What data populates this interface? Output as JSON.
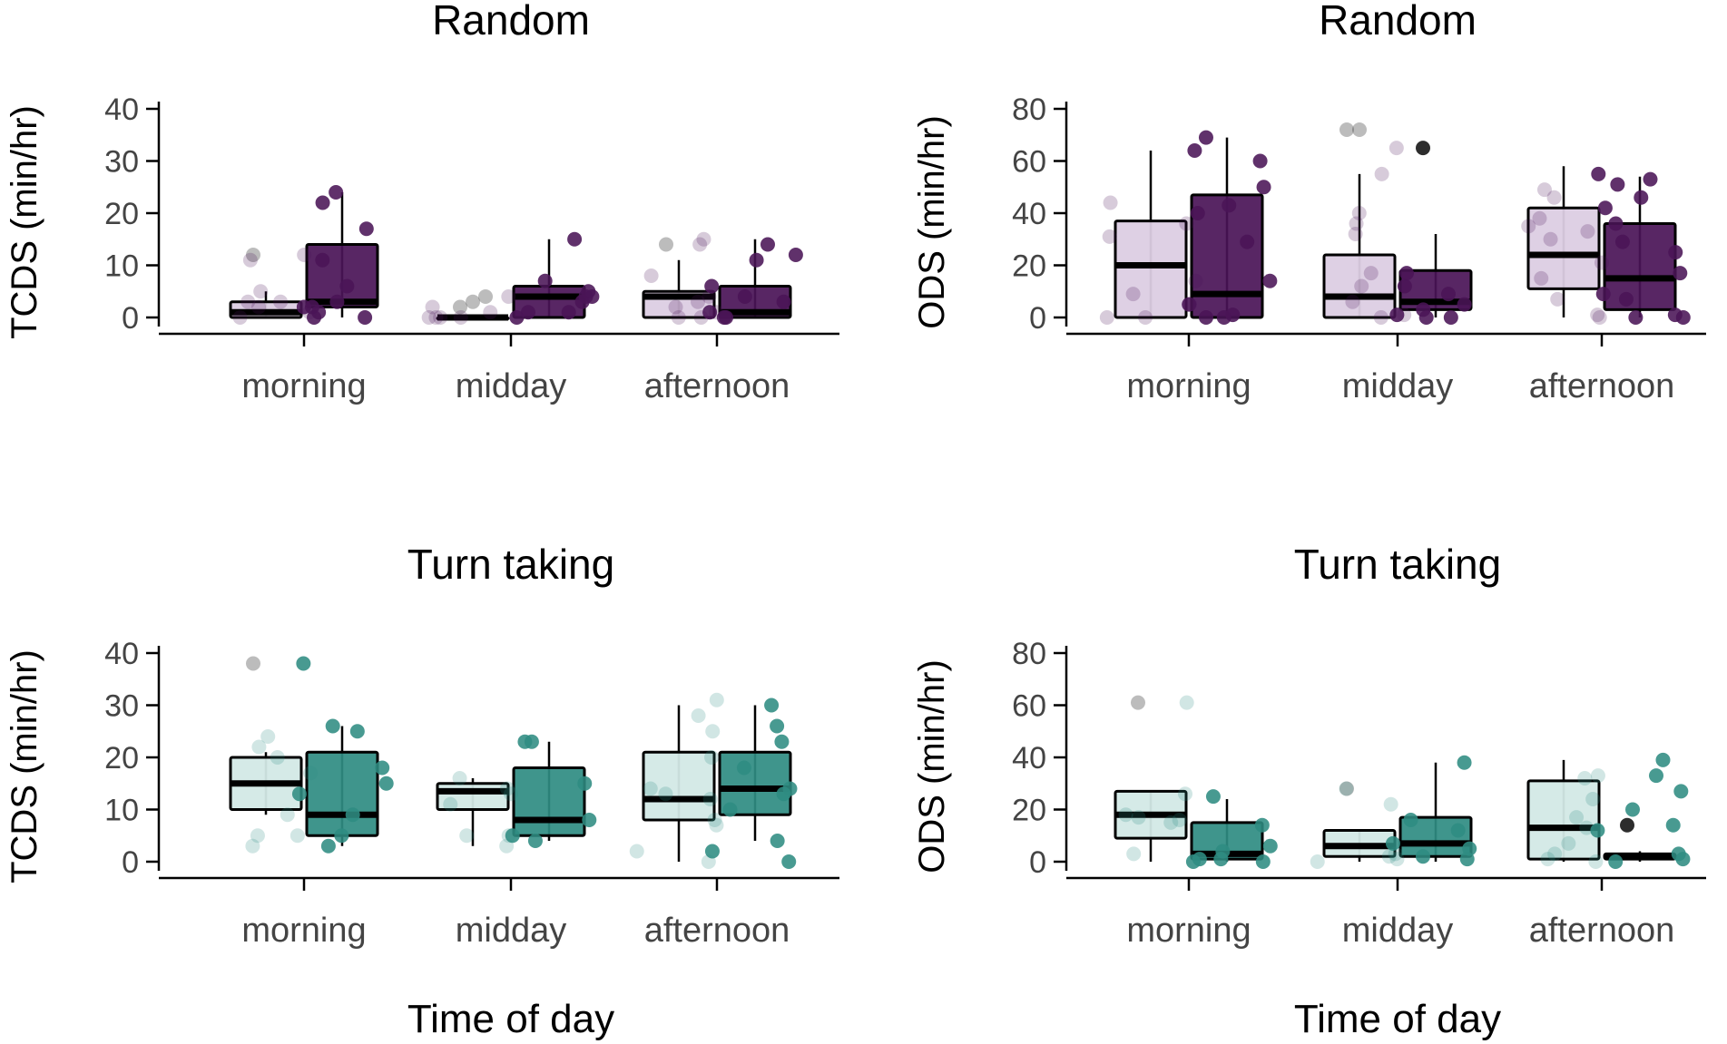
{
  "colors": {
    "purple_dark": "#4a1457",
    "purple_light": "#dccde3",
    "teal_dark": "#2f8c82",
    "teal_light": "#d3e9e6",
    "outlier": "#222222",
    "axis": "#000000"
  },
  "xaxis_label": "Time of day",
  "chart_data": [
    {
      "type": "box",
      "title": "Random",
      "ylabel": "TCDS (min/hr)",
      "xlabel": "",
      "palette": "purple",
      "categories": [
        "morning",
        "midday",
        "afternoon"
      ],
      "ylim": [
        0,
        40
      ],
      "yticks": [
        0,
        10,
        20,
        30,
        40
      ],
      "boxes": [
        {
          "category": "morning",
          "group": "light",
          "q1": 0,
          "median": 1,
          "q3": 3,
          "whisker_low": 0,
          "whisker_high": 5,
          "outliers": [
            12
          ]
        },
        {
          "category": "morning",
          "group": "dark",
          "q1": 2,
          "median": 3,
          "q3": 14,
          "whisker_low": 0,
          "whisker_high": 24,
          "outliers": []
        },
        {
          "category": "midday",
          "group": "light",
          "q1": 0,
          "median": 0,
          "q3": 0,
          "whisker_low": 0,
          "whisker_high": 0,
          "outliers": [
            2,
            3,
            4
          ]
        },
        {
          "category": "midday",
          "group": "dark",
          "q1": 0,
          "median": 4,
          "q3": 6,
          "whisker_low": 0,
          "whisker_high": 15,
          "outliers": []
        },
        {
          "category": "afternoon",
          "group": "light",
          "q1": 0,
          "median": 4,
          "q3": 5,
          "whisker_low": 0,
          "whisker_high": 11,
          "outliers": [
            14
          ]
        },
        {
          "category": "afternoon",
          "group": "dark",
          "q1": 0,
          "median": 1,
          "q3": 6,
          "whisker_low": 0,
          "whisker_high": 15,
          "outliers": []
        }
      ],
      "points": [
        {
          "category": "morning",
          "group": "light",
          "values": [
            12,
            11,
            5,
            3,
            2,
            1,
            0,
            3
          ]
        },
        {
          "category": "morning",
          "group": "dark",
          "values": [
            22,
            17,
            11,
            6,
            2,
            1,
            0,
            24,
            3,
            0,
            2
          ]
        },
        {
          "category": "midday",
          "group": "light",
          "values": [
            0,
            0,
            1,
            0,
            0,
            2,
            4
          ]
        },
        {
          "category": "midday",
          "group": "dark",
          "values": [
            15,
            5,
            1,
            7,
            4,
            1,
            0,
            3,
            4
          ]
        },
        {
          "category": "afternoon",
          "group": "light",
          "values": [
            14,
            15,
            8,
            4,
            3,
            1,
            0,
            0,
            2
          ]
        },
        {
          "category": "afternoon",
          "group": "dark",
          "values": [
            12,
            11,
            6,
            4,
            1,
            0,
            0,
            14,
            3
          ]
        }
      ]
    },
    {
      "type": "box",
      "title": "Random",
      "ylabel": "ODS (min/hr)",
      "xlabel": "",
      "palette": "purple",
      "categories": [
        "morning",
        "midday",
        "afternoon"
      ],
      "ylim": [
        0,
        80
      ],
      "yticks": [
        0,
        20,
        40,
        60,
        80
      ],
      "boxes": [
        {
          "category": "morning",
          "group": "light",
          "q1": 0,
          "median": 20,
          "q3": 37,
          "whisker_low": 0,
          "whisker_high": 64,
          "outliers": []
        },
        {
          "category": "morning",
          "group": "dark",
          "q1": 0,
          "median": 9,
          "q3": 47,
          "whisker_low": 0,
          "whisker_high": 69,
          "outliers": []
        },
        {
          "category": "midday",
          "group": "light",
          "q1": 0,
          "median": 8,
          "q3": 24,
          "whisker_low": 0,
          "whisker_high": 55,
          "outliers": [
            72,
            72
          ]
        },
        {
          "category": "midday",
          "group": "dark",
          "q1": 3,
          "median": 6,
          "q3": 18,
          "whisker_low": 0,
          "whisker_high": 32,
          "outliers": [
            65
          ]
        },
        {
          "category": "afternoon",
          "group": "light",
          "q1": 11,
          "median": 24,
          "q3": 42,
          "whisker_low": 0,
          "whisker_high": 58,
          "outliers": []
        },
        {
          "category": "afternoon",
          "group": "dark",
          "q1": 3,
          "median": 15,
          "q3": 36,
          "whisker_low": 0,
          "whisker_high": 54,
          "outliers": []
        }
      ],
      "points": [
        {
          "category": "morning",
          "group": "light",
          "values": [
            44,
            36,
            31,
            14,
            9,
            0,
            0,
            5
          ]
        },
        {
          "category": "morning",
          "group": "dark",
          "values": [
            69,
            64,
            60,
            50,
            43,
            40,
            29,
            14,
            5,
            1,
            0,
            0
          ]
        },
        {
          "category": "midday",
          "group": "light",
          "values": [
            65,
            55,
            40,
            36,
            32,
            17,
            12,
            6,
            1,
            0
          ]
        },
        {
          "category": "midday",
          "group": "dark",
          "values": [
            17,
            12,
            9,
            5,
            3,
            1,
            0,
            0
          ]
        },
        {
          "category": "afternoon",
          "group": "light",
          "values": [
            49,
            46,
            38,
            35,
            33,
            30,
            21,
            15,
            7,
            1,
            0
          ]
        },
        {
          "category": "afternoon",
          "group": "dark",
          "values": [
            55,
            53,
            51,
            46,
            42,
            36,
            29,
            25,
            17,
            9,
            7,
            1,
            0,
            0
          ]
        }
      ]
    },
    {
      "type": "box",
      "title": "Turn taking",
      "ylabel": "TCDS (min/hr)",
      "xlabel": "",
      "palette": "teal",
      "categories": [
        "morning",
        "midday",
        "afternoon"
      ],
      "ylim": [
        0,
        40
      ],
      "yticks": [
        0,
        10,
        20,
        30,
        40
      ],
      "boxes": [
        {
          "category": "morning",
          "group": "light",
          "q1": 10,
          "median": 15,
          "q3": 20,
          "whisker_low": 9,
          "whisker_high": 21,
          "outliers": [
            38
          ]
        },
        {
          "category": "morning",
          "group": "dark",
          "q1": 5,
          "median": 9,
          "q3": 21,
          "whisker_low": 3,
          "whisker_high": 26,
          "outliers": []
        },
        {
          "category": "midday",
          "group": "light",
          "q1": 10,
          "median": 13.5,
          "q3": 15,
          "whisker_low": 3,
          "whisker_high": 16,
          "outliers": []
        },
        {
          "category": "midday",
          "group": "dark",
          "q1": 5,
          "median": 8,
          "q3": 18,
          "whisker_low": 4,
          "whisker_high": 23,
          "outliers": []
        },
        {
          "category": "afternoon",
          "group": "light",
          "q1": 8,
          "median": 12,
          "q3": 21,
          "whisker_low": 0,
          "whisker_high": 30,
          "outliers": []
        },
        {
          "category": "afternoon",
          "group": "dark",
          "q1": 9,
          "median": 14,
          "q3": 21,
          "whisker_low": 4,
          "whisker_high": 30,
          "outliers": []
        }
      ],
      "points": [
        {
          "category": "morning",
          "group": "light",
          "values": [
            20,
            24,
            22,
            17,
            9,
            5,
            5,
            3
          ]
        },
        {
          "category": "morning",
          "group": "dark",
          "values": [
            38,
            26,
            25,
            18,
            15,
            13,
            9,
            5,
            3
          ]
        },
        {
          "category": "midday",
          "group": "light",
          "values": [
            16,
            13,
            11,
            5,
            3,
            5,
            14
          ]
        },
        {
          "category": "midday",
          "group": "dark",
          "values": [
            23,
            23,
            15,
            8,
            5,
            4
          ]
        },
        {
          "category": "afternoon",
          "group": "light",
          "values": [
            31,
            28,
            25,
            20,
            14,
            13,
            12,
            8,
            7,
            2,
            0
          ]
        },
        {
          "category": "afternoon",
          "group": "dark",
          "values": [
            30,
            26,
            23,
            18,
            14,
            13,
            10,
            4,
            2,
            0
          ]
        }
      ]
    },
    {
      "type": "box",
      "title": "Turn taking",
      "ylabel": "ODS (min/hr)",
      "xlabel": "",
      "palette": "teal",
      "categories": [
        "morning",
        "midday",
        "afternoon"
      ],
      "ylim": [
        0,
        80
      ],
      "yticks": [
        0,
        20,
        40,
        60,
        80
      ],
      "boxes": [
        {
          "category": "morning",
          "group": "light",
          "q1": 9,
          "median": 18,
          "q3": 27,
          "whisker_low": 0,
          "whisker_high": 27,
          "outliers": [
            61
          ]
        },
        {
          "category": "morning",
          "group": "dark",
          "q1": 1,
          "median": 3,
          "q3": 15,
          "whisker_low": 0,
          "whisker_high": 24,
          "outliers": []
        },
        {
          "category": "midday",
          "group": "light",
          "q1": 2,
          "median": 6,
          "q3": 12,
          "whisker_low": 0,
          "whisker_high": 12,
          "outliers": [
            28
          ]
        },
        {
          "category": "midday",
          "group": "dark",
          "q1": 2,
          "median": 7,
          "q3": 17,
          "whisker_low": 0,
          "whisker_high": 38,
          "outliers": []
        },
        {
          "category": "afternoon",
          "group": "light",
          "q1": 1,
          "median": 13,
          "q3": 31,
          "whisker_low": 0,
          "whisker_high": 39,
          "outliers": []
        },
        {
          "category": "afternoon",
          "group": "dark",
          "q1": 1,
          "median": 2,
          "q3": 3,
          "whisker_low": 0,
          "whisker_high": 4,
          "outliers": [
            14
          ]
        }
      ],
      "points": [
        {
          "category": "morning",
          "group": "light",
          "values": [
            61,
            26,
            18,
            17,
            16,
            15,
            3
          ]
        },
        {
          "category": "morning",
          "group": "dark",
          "values": [
            25,
            14,
            6,
            4,
            1,
            1,
            0,
            0
          ]
        },
        {
          "category": "midday",
          "group": "light",
          "values": [
            28,
            22,
            3,
            1,
            0,
            2
          ]
        },
        {
          "category": "midday",
          "group": "dark",
          "values": [
            38,
            16,
            12,
            7,
            5,
            2,
            1
          ]
        },
        {
          "category": "afternoon",
          "group": "light",
          "values": [
            33,
            32,
            24,
            17,
            13,
            7,
            3,
            1,
            0
          ]
        },
        {
          "category": "afternoon",
          "group": "dark",
          "values": [
            39,
            33,
            27,
            20,
            14,
            12,
            3,
            1,
            0
          ]
        }
      ]
    }
  ]
}
